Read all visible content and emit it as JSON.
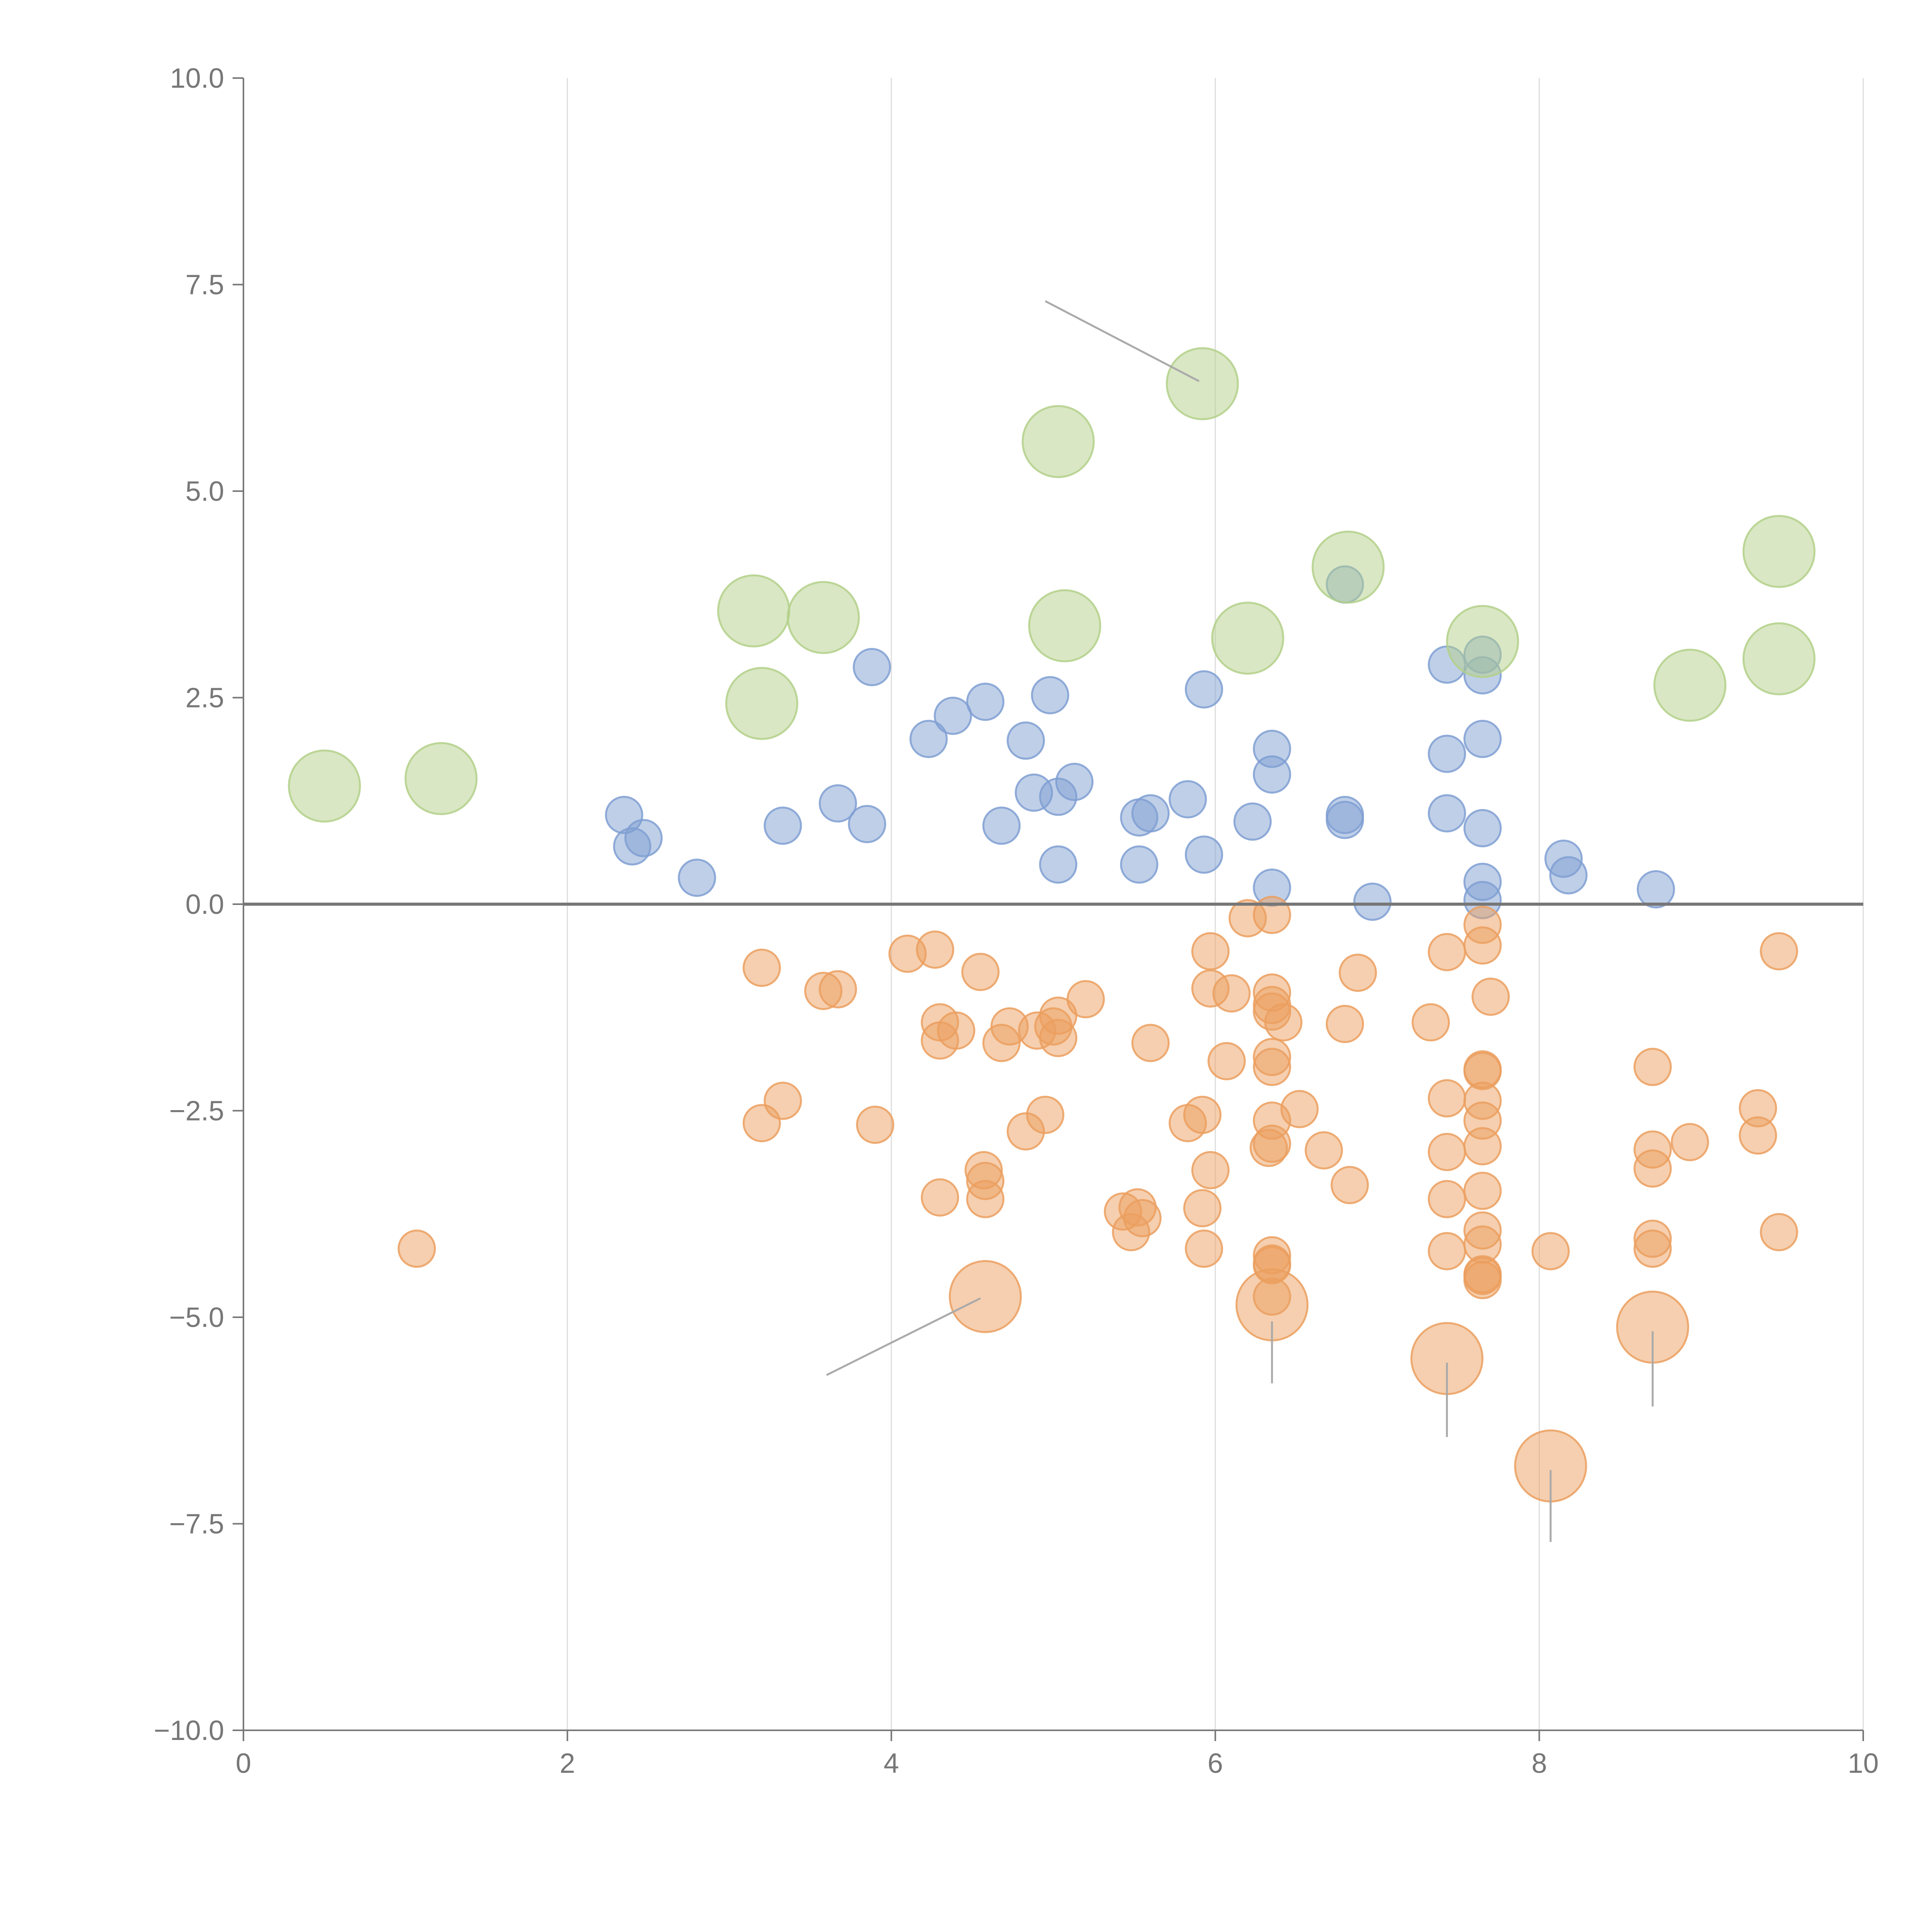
{
  "chart_data": {
    "type": "scatter",
    "title": "",
    "xlabel": "",
    "ylabel": "",
    "xlim": [
      0,
      10
    ],
    "ylim": [
      -10,
      10
    ],
    "grid": "vertical",
    "legend": "none",
    "x_ticks": [
      "0",
      "2",
      "4",
      "6",
      "8",
      "10"
    ],
    "y_ticks": [
      "10.0",
      "7.5",
      "5.0",
      "2.5",
      "0.0",
      "−2.5",
      "−5.0",
      "−7.5",
      "−10.0"
    ],
    "reference_line_y": 0,
    "colors": {
      "blue": "#7f9fd2",
      "orange": "#eb9f5f",
      "green": "#b3d08a",
      "axis": "#777777",
      "grid": "#dddddd"
    },
    "series": [
      {
        "name": "blue",
        "color": "#7f9fd2",
        "size": "small",
        "points": [
          [
            2.35,
            1.08
          ],
          [
            2.4,
            0.7
          ],
          [
            2.47,
            0.8
          ],
          [
            2.8,
            0.32
          ],
          [
            3.33,
            0.95
          ],
          [
            3.67,
            1.22
          ],
          [
            3.85,
            0.97
          ],
          [
            3.88,
            2.87
          ],
          [
            4.23,
            2.0
          ],
          [
            4.38,
            2.28
          ],
          [
            4.58,
            2.45
          ],
          [
            4.68,
            0.95
          ],
          [
            4.83,
            1.98
          ],
          [
            4.88,
            1.35
          ],
          [
            4.98,
            2.53
          ],
          [
            5.03,
            1.3
          ],
          [
            5.03,
            0.48
          ],
          [
            5.13,
            1.48
          ],
          [
            5.53,
            1.05
          ],
          [
            5.6,
            1.1
          ],
          [
            5.53,
            0.48
          ],
          [
            5.83,
            1.27
          ],
          [
            5.93,
            2.6
          ],
          [
            5.93,
            0.6
          ],
          [
            6.23,
            1.0
          ],
          [
            6.35,
            1.88
          ],
          [
            6.35,
            1.57
          ],
          [
            6.35,
            0.2
          ],
          [
            6.8,
            3.87
          ],
          [
            6.8,
            1.08
          ],
          [
            6.8,
            1.02
          ],
          [
            6.97,
            0.03
          ],
          [
            7.43,
            2.9
          ],
          [
            7.43,
            1.82
          ],
          [
            7.43,
            1.1
          ],
          [
            7.65,
            3.02
          ],
          [
            7.65,
            2.77
          ],
          [
            7.65,
            2.0
          ],
          [
            7.65,
            0.92
          ],
          [
            7.65,
            0.27
          ],
          [
            7.65,
            0.05
          ],
          [
            8.15,
            0.55
          ],
          [
            8.18,
            0.35
          ],
          [
            8.72,
            0.18
          ]
        ]
      },
      {
        "name": "orange",
        "color": "#eb9f5f",
        "size": "small",
        "points": [
          [
            1.07,
            -4.17
          ],
          [
            3.2,
            -0.77
          ],
          [
            3.2,
            -2.65
          ],
          [
            3.33,
            -2.38
          ],
          [
            3.58,
            -1.05
          ],
          [
            3.67,
            -1.03
          ],
          [
            3.9,
            -2.67
          ],
          [
            4.1,
            -0.6
          ],
          [
            4.27,
            -0.55
          ],
          [
            4.3,
            -1.43
          ],
          [
            4.3,
            -1.65
          ],
          [
            4.3,
            -3.55
          ],
          [
            4.4,
            -1.53
          ],
          [
            4.55,
            -0.82
          ],
          [
            4.57,
            -3.22
          ],
          [
            4.58,
            -3.35
          ],
          [
            4.58,
            -3.57
          ],
          [
            4.68,
            -1.68
          ],
          [
            4.73,
            -1.48
          ],
          [
            4.83,
            -2.75
          ],
          [
            4.9,
            -1.53
          ],
          [
            4.95,
            -2.55
          ],
          [
            5.0,
            -1.48
          ],
          [
            5.03,
            -1.35
          ],
          [
            5.03,
            -1.62
          ],
          [
            5.2,
            -1.15
          ],
          [
            5.43,
            -3.72
          ],
          [
            5.48,
            -3.97
          ],
          [
            5.52,
            -3.67
          ],
          [
            5.55,
            -3.8
          ],
          [
            5.6,
            -1.68
          ],
          [
            5.83,
            -2.65
          ],
          [
            5.92,
            -2.55
          ],
          [
            5.92,
            -3.68
          ],
          [
            5.93,
            -4.17
          ],
          [
            5.97,
            -0.57
          ],
          [
            5.97,
            -1.02
          ],
          [
            5.97,
            -3.22
          ],
          [
            6.07,
            -1.9
          ],
          [
            6.1,
            -1.08
          ],
          [
            6.2,
            -0.17
          ],
          [
            6.33,
            -2.95
          ],
          [
            6.35,
            -0.13
          ],
          [
            6.35,
            -1.07
          ],
          [
            6.35,
            -1.22
          ],
          [
            6.35,
            -1.3
          ],
          [
            6.35,
            -1.85
          ],
          [
            6.35,
            -1.97
          ],
          [
            6.35,
            -2.62
          ],
          [
            6.35,
            -2.9
          ],
          [
            6.35,
            -4.25
          ],
          [
            6.35,
            -4.35
          ],
          [
            6.35,
            -4.37
          ],
          [
            6.35,
            -4.75
          ],
          [
            6.42,
            -1.43
          ],
          [
            6.52,
            -2.48
          ],
          [
            6.67,
            -2.98
          ],
          [
            6.8,
            -1.45
          ],
          [
            6.83,
            -3.4
          ],
          [
            6.88,
            -0.83
          ],
          [
            7.33,
            -1.43
          ],
          [
            7.43,
            -0.58
          ],
          [
            7.43,
            -2.35
          ],
          [
            7.43,
            -3.0
          ],
          [
            7.43,
            -3.57
          ],
          [
            7.43,
            -4.2
          ],
          [
            7.65,
            -0.25
          ],
          [
            7.65,
            -0.5
          ],
          [
            7.65,
            -2.0
          ],
          [
            7.65,
            -2.02
          ],
          [
            7.65,
            -2.38
          ],
          [
            7.65,
            -2.62
          ],
          [
            7.65,
            -2.93
          ],
          [
            7.65,
            -3.47
          ],
          [
            7.65,
            -3.95
          ],
          [
            7.65,
            -4.12
          ],
          [
            7.65,
            -4.48
          ],
          [
            7.65,
            -4.5
          ],
          [
            7.65,
            -4.55
          ],
          [
            7.7,
            -1.12
          ],
          [
            8.07,
            -4.2
          ],
          [
            8.7,
            -1.97
          ],
          [
            8.7,
            -2.97
          ],
          [
            8.7,
            -3.2
          ],
          [
            8.7,
            -4.05
          ],
          [
            8.7,
            -4.17
          ],
          [
            8.93,
            -2.88
          ],
          [
            9.35,
            -2.47
          ],
          [
            9.35,
            -2.8
          ],
          [
            9.48,
            -0.57
          ],
          [
            9.48,
            -3.97
          ]
        ]
      },
      {
        "name": "orange-large",
        "color": "#eb9f5f",
        "size": "large",
        "points": [
          [
            4.58,
            -4.75
          ],
          [
            6.35,
            -4.85
          ],
          [
            7.43,
            -5.5
          ],
          [
            8.07,
            -6.8
          ],
          [
            8.7,
            -5.12
          ]
        ]
      },
      {
        "name": "green",
        "color": "#b3d08a",
        "size": "large",
        "points": [
          [
            0.5,
            1.43
          ],
          [
            1.22,
            1.52
          ],
          [
            3.15,
            3.55
          ],
          [
            3.2,
            2.43
          ],
          [
            3.58,
            3.47
          ],
          [
            5.03,
            5.6
          ],
          [
            5.07,
            3.37
          ],
          [
            5.92,
            6.3
          ],
          [
            6.2,
            3.22
          ],
          [
            6.82,
            4.08
          ],
          [
            7.65,
            3.18
          ],
          [
            8.93,
            2.65
          ],
          [
            9.48,
            4.27
          ],
          [
            9.48,
            2.97
          ]
        ]
      }
    ],
    "annotations": [
      {
        "from": [
          4.95,
          7.3
        ],
        "to": [
          5.9,
          6.33
        ]
      },
      {
        "from": [
          3.6,
          -5.7
        ],
        "to": [
          4.55,
          -4.77
        ]
      },
      {
        "from": [
          6.35,
          -5.05
        ],
        "to": [
          6.35,
          -5.8
        ]
      },
      {
        "from": [
          7.43,
          -5.55
        ],
        "to": [
          7.43,
          -6.45
        ]
      },
      {
        "from": [
          8.07,
          -6.85
        ],
        "to": [
          8.07,
          -7.72
        ]
      },
      {
        "from": [
          8.7,
          -5.17
        ],
        "to": [
          8.7,
          -6.08
        ]
      }
    ]
  }
}
